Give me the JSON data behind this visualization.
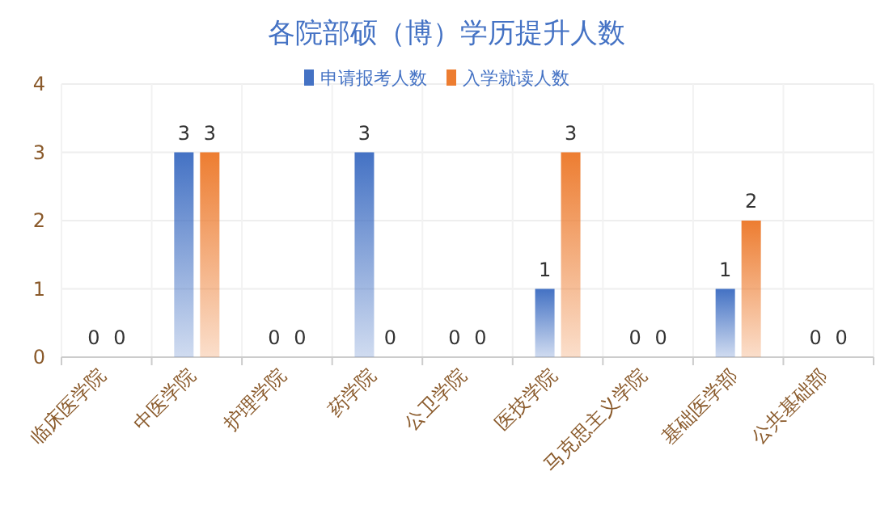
{
  "chart_data": {
    "type": "bar",
    "title": "各院部硕（博）学历提升人数",
    "categories": [
      "临床医学院",
      "中医学院",
      "护理学院",
      "药学院",
      "公卫学院",
      "医技学院",
      "马克思主义学院",
      "基础医学部",
      "公共基础部"
    ],
    "series": [
      {
        "name": "申请报考人数",
        "color": "#4472c4",
        "values": [
          0,
          3,
          0,
          3,
          0,
          1,
          0,
          1,
          0
        ]
      },
      {
        "name": "入学就读人数",
        "color": "#ed7d31",
        "values": [
          0,
          3,
          0,
          0,
          0,
          3,
          0,
          2,
          0
        ]
      }
    ],
    "ylim": [
      0,
      4
    ],
    "yticks": [
      0,
      1,
      2,
      3,
      4
    ],
    "grid": true,
    "legend": "top",
    "data_labels": true
  }
}
